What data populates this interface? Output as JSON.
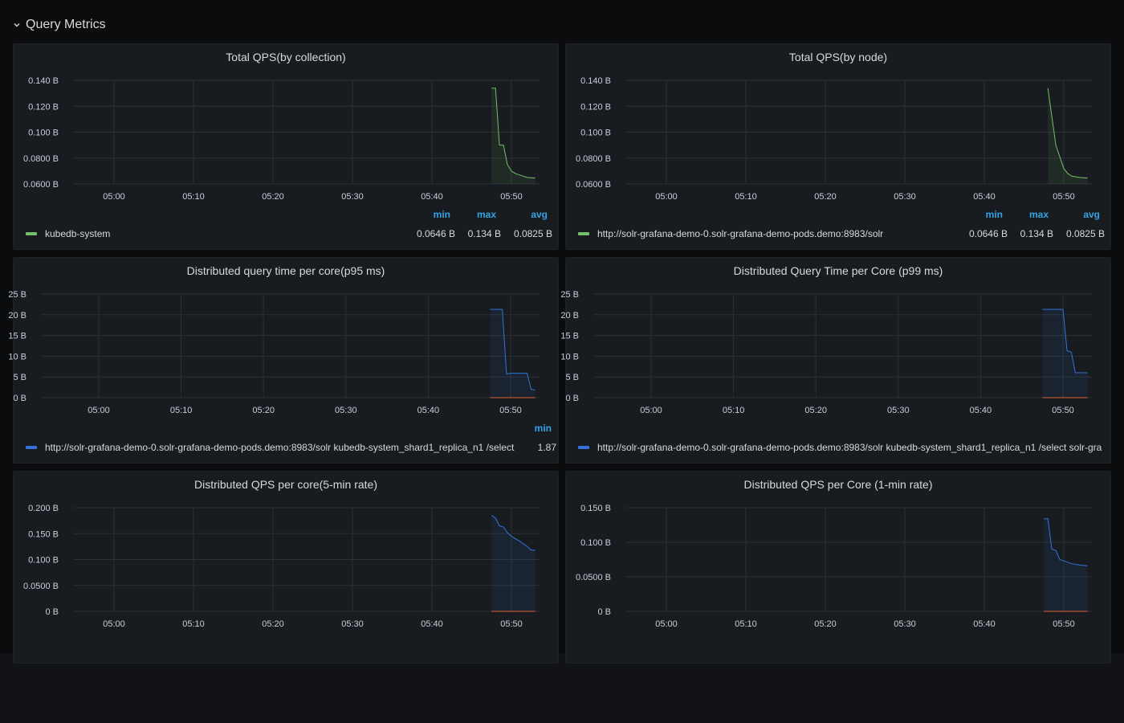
{
  "row": {
    "title": "Query Metrics"
  },
  "colors": {
    "green": "#73bf69",
    "blue": "#3274d9",
    "red": "#e0602e",
    "legend_head": "#33a2e5"
  },
  "panels": [
    {
      "title": "Total QPS(by collection)",
      "legend": {
        "headers": [
          "min",
          "max",
          "avg"
        ],
        "rows": [
          {
            "name": "kubedb-system",
            "color": "#73bf69",
            "values": [
              "0.0646 B",
              "0.134 B",
              "0.0825 B"
            ]
          }
        ]
      },
      "chart_data": {
        "type": "line",
        "x_ticks": [
          "05:00",
          "05:10",
          "05:20",
          "05:30",
          "05:40",
          "05:50"
        ],
        "y_ticks": [
          "0.0600 B",
          "0.0800 B",
          "0.100 B",
          "0.120 B",
          "0.140 B"
        ],
        "series": [
          {
            "name": "kubedb-system",
            "color": "#73bf69",
            "x": [
              "05:47.5",
              "05:48",
              "05:48.5",
              "05:49",
              "05:49.5",
              "05:50",
              "05:50.5",
              "05:51",
              "05:51.5",
              "05:52",
              "05:53"
            ],
            "y": [
              0.134,
              0.134,
              0.09,
              0.09,
              0.075,
              0.07,
              0.068,
              0.067,
              0.066,
              0.065,
              0.0646
            ]
          }
        ]
      }
    },
    {
      "title": "Total QPS(by node)",
      "legend": {
        "headers": [
          "min",
          "max",
          "avg"
        ],
        "rows": [
          {
            "name": "http://solr-grafana-demo-0.solr-grafana-demo-pods.demo:8983/solr",
            "color": "#73bf69",
            "values": [
              "0.0646 B",
              "0.134 B",
              "0.0825 B"
            ]
          }
        ]
      },
      "chart_data": {
        "type": "line",
        "x_ticks": [
          "05:00",
          "05:10",
          "05:20",
          "05:30",
          "05:40",
          "05:50"
        ],
        "y_ticks": [
          "0.0600 B",
          "0.0800 B",
          "0.100 B",
          "0.120 B",
          "0.140 B"
        ],
        "series": [
          {
            "name": "http://solr-grafana-demo-0.solr-grafana-demo-pods.demo:8983/solr",
            "color": "#73bf69",
            "x": [
              "05:48",
              "05:49",
              "05:50",
              "05:50.5",
              "05:51",
              "05:52",
              "05:53"
            ],
            "y": [
              0.134,
              0.09,
              0.072,
              0.068,
              0.066,
              0.065,
              0.0646
            ]
          }
        ]
      }
    },
    {
      "title": "Distributed query time per core(p95 ms)",
      "legend": {
        "headers": [
          "min"
        ],
        "rows": [
          {
            "name": "http://solr-grafana-demo-0.solr-grafana-demo-pods.demo:8983/solr kubedb-system_shard1_replica_n1 /select",
            "color": "#3274d9",
            "values": [
              "1.87"
            ]
          }
        ]
      },
      "chart_data": {
        "type": "line",
        "x_ticks": [
          "05:00",
          "05:10",
          "05:20",
          "05:30",
          "05:40",
          "05:50"
        ],
        "y_ticks": [
          "0 B",
          "5 B",
          "10 B",
          "15 B",
          "20 B",
          "25 B"
        ],
        "series": [
          {
            "name": "http://solr-grafana-demo-0.solr-grafana-demo-pods.demo:8983/solr kubedb-system_shard1_replica_n1 /select",
            "color": "#3274d9",
            "x": [
              "05:47.5",
              "05:49",
              "05:49.5",
              "05:50",
              "05:52",
              "05:52.5",
              "05:53"
            ],
            "y": [
              21.3,
              21.3,
              5.7,
              5.9,
              5.9,
              2.0,
              1.87
            ]
          },
          {
            "name": "",
            "color": "#e0602e",
            "x": [
              "05:47.5",
              "05:53"
            ],
            "y": [
              0,
              0
            ]
          }
        ]
      }
    },
    {
      "title": "Distributed Query Time per Core (p99 ms)",
      "legend": {
        "headers": [],
        "rows": [
          {
            "name": "http://solr-grafana-demo-0.solr-grafana-demo-pods.demo:8983/solr kubedb-system_shard1_replica_n1 /select solr-gra",
            "color": "#3274d9",
            "values": []
          }
        ]
      },
      "chart_data": {
        "type": "line",
        "x_ticks": [
          "05:00",
          "05:10",
          "05:20",
          "05:30",
          "05:40",
          "05:50"
        ],
        "y_ticks": [
          "0 B",
          "5 B",
          "10 B",
          "15 B",
          "20 B",
          "25 B"
        ],
        "series": [
          {
            "name": "http://solr-grafana-demo-0.solr-grafana-demo-pods.demo:8983/solr kubedb-system_shard1_replica_n1 /select solr-gra",
            "color": "#3274d9",
            "x": [
              "05:47.5",
              "05:50",
              "05:50.5",
              "05:51",
              "05:51.5",
              "05:52",
              "05:53"
            ],
            "y": [
              21.3,
              21.3,
              11.3,
              11.0,
              6.0,
              6.0,
              6.0
            ]
          },
          {
            "name": "",
            "color": "#e0602e",
            "x": [
              "05:47.5",
              "05:53"
            ],
            "y": [
              0,
              0
            ]
          }
        ]
      }
    },
    {
      "title": "Distributed QPS per core(5-min rate)",
      "chart_data": {
        "type": "line",
        "x_ticks": [
          "05:00",
          "05:10",
          "05:20",
          "05:30",
          "05:40",
          "05:50"
        ],
        "y_ticks": [
          "0 B",
          "0.0500 B",
          "0.100 B",
          "0.150 B",
          "0.200 B"
        ],
        "series": [
          {
            "name": "",
            "color": "#3274d9",
            "x": [
              "05:47.5",
              "05:48",
              "05:48.5",
              "05:49",
              "05:49.5",
              "05:50",
              "05:50.5",
              "05:51",
              "05:51.5",
              "05:52",
              "05:52.5",
              "05:53"
            ],
            "y": [
              0.185,
              0.18,
              0.165,
              0.163,
              0.152,
              0.145,
              0.14,
              0.136,
              0.13,
              0.125,
              0.118,
              0.118
            ]
          },
          {
            "name": "",
            "color": "#e0602e",
            "x": [
              "05:47.5",
              "05:53"
            ],
            "y": [
              0,
              0
            ]
          }
        ]
      }
    },
    {
      "title": "Distributed QPS per Core (1-min rate)",
      "chart_data": {
        "type": "line",
        "x_ticks": [
          "05:00",
          "05:10",
          "05:20",
          "05:30",
          "05:40",
          "05:50"
        ],
        "y_ticks": [
          "0 B",
          "0.0500 B",
          "0.100 B",
          "0.150 B"
        ],
        "series": [
          {
            "name": "",
            "color": "#3274d9",
            "x": [
              "05:47.5",
              "05:48",
              "05:48.5",
              "05:49",
              "05:49.5",
              "05:50",
              "05:51",
              "05:52",
              "05:53"
            ],
            "y": [
              0.134,
              0.134,
              0.09,
              0.088,
              0.075,
              0.073,
              0.069,
              0.067,
              0.066
            ]
          },
          {
            "name": "",
            "color": "#e0602e",
            "x": [
              "05:47.5",
              "05:53"
            ],
            "y": [
              0,
              0
            ]
          }
        ]
      }
    }
  ]
}
